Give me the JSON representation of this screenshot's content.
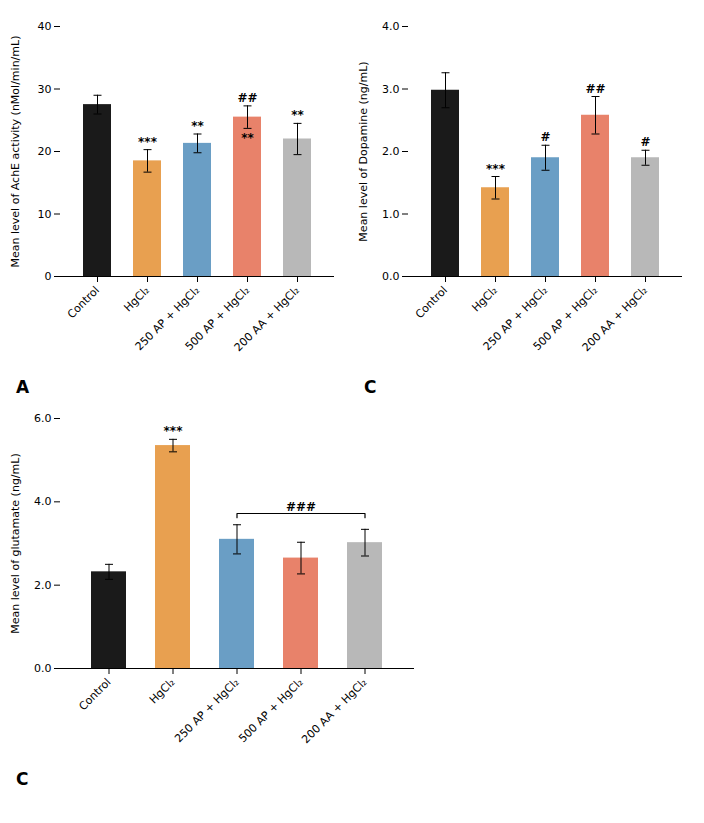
{
  "chart_data": [
    {
      "type": "bar",
      "title": "A",
      "ylabel": "Mean level of AchE activity (nMol/min/mL)",
      "categories": [
        "Control",
        "HgCl₂",
        "250 AP + HgCl₂",
        "500 AP + HgCl₂",
        "200 AA + HgCl₂"
      ],
      "values": [
        27.5,
        18.5,
        21.3,
        25.5,
        22.0
      ],
      "errors": [
        1.5,
        1.8,
        1.5,
        1.8,
        2.5
      ],
      "colors": [
        "#1a1a1a",
        "#E8A050",
        "#6A9EC5",
        "#E8826A",
        "#B8B8B8"
      ],
      "ylim": [
        0,
        40
      ],
      "yticks": [
        0,
        10,
        20,
        30,
        40
      ],
      "grid": false,
      "annotations": [
        {
          "text": "***",
          "category": "HgCl₂",
          "position": "above"
        },
        {
          "text": "**",
          "category": "250 AP + HgCl₂",
          "position": "above"
        },
        {
          "text": "##",
          "category": "500 AP + HgCl₂",
          "position": "above"
        },
        {
          "text": "**",
          "category": "500 AP + HgCl₂",
          "position": "below"
        },
        {
          "text": "**",
          "category": "200 AA + HgCl₂",
          "position": "above"
        }
      ]
    },
    {
      "type": "bar",
      "title": "C",
      "ylabel": "Mean level of Dopamine (ng/mL)",
      "categories": [
        "Control",
        "HgCl₂",
        "250 AP + HgCl₂",
        "500 AP + HgCl₂",
        "200 AA + HgCl₂"
      ],
      "values": [
        2.98,
        1.42,
        1.9,
        2.58,
        1.9
      ],
      "errors": [
        0.28,
        0.18,
        0.2,
        0.3,
        0.12
      ],
      "colors": [
        "#1a1a1a",
        "#E8A050",
        "#6A9EC5",
        "#E8826A",
        "#B8B8B8"
      ],
      "ylim": [
        0,
        4
      ],
      "yticks": [
        0,
        1,
        2,
        3,
        4
      ],
      "grid": false,
      "annotations": [
        {
          "text": "***",
          "category": "HgCl₂",
          "position": "above"
        },
        {
          "text": "#",
          "category": "250 AP + HgCl₂",
          "position": "above"
        },
        {
          "text": "##",
          "category": "500 AP + HgCl₂",
          "position": "above"
        },
        {
          "text": "#",
          "category": "200 AA + HgCl₂",
          "position": "above"
        }
      ]
    },
    {
      "type": "bar",
      "title": "C",
      "ylabel": "Mean level of glutamate (ng/mL)",
      "categories": [
        "Control",
        "HgCl₂",
        "250 AP + HgCl₂",
        "500 AP + HgCl₂",
        "200 AA + HgCl₂"
      ],
      "values": [
        2.32,
        5.35,
        3.1,
        2.65,
        3.02
      ],
      "errors": [
        0.18,
        0.15,
        0.35,
        0.38,
        0.32
      ],
      "colors": [
        "#1a1a1a",
        "#E8A050",
        "#6A9EC5",
        "#E8826A",
        "#B8B8B8"
      ],
      "ylim": [
        0,
        6
      ],
      "yticks": [
        0,
        2,
        4,
        6
      ],
      "grid": false,
      "annotations": [
        {
          "text": "***",
          "category": "HgCl₂",
          "position": "above"
        },
        {
          "text": "###",
          "type": "bracket",
          "from": "250 AP + HgCl₂",
          "to": "200 AA + HgCl₂",
          "y": 3.72
        }
      ]
    }
  ]
}
